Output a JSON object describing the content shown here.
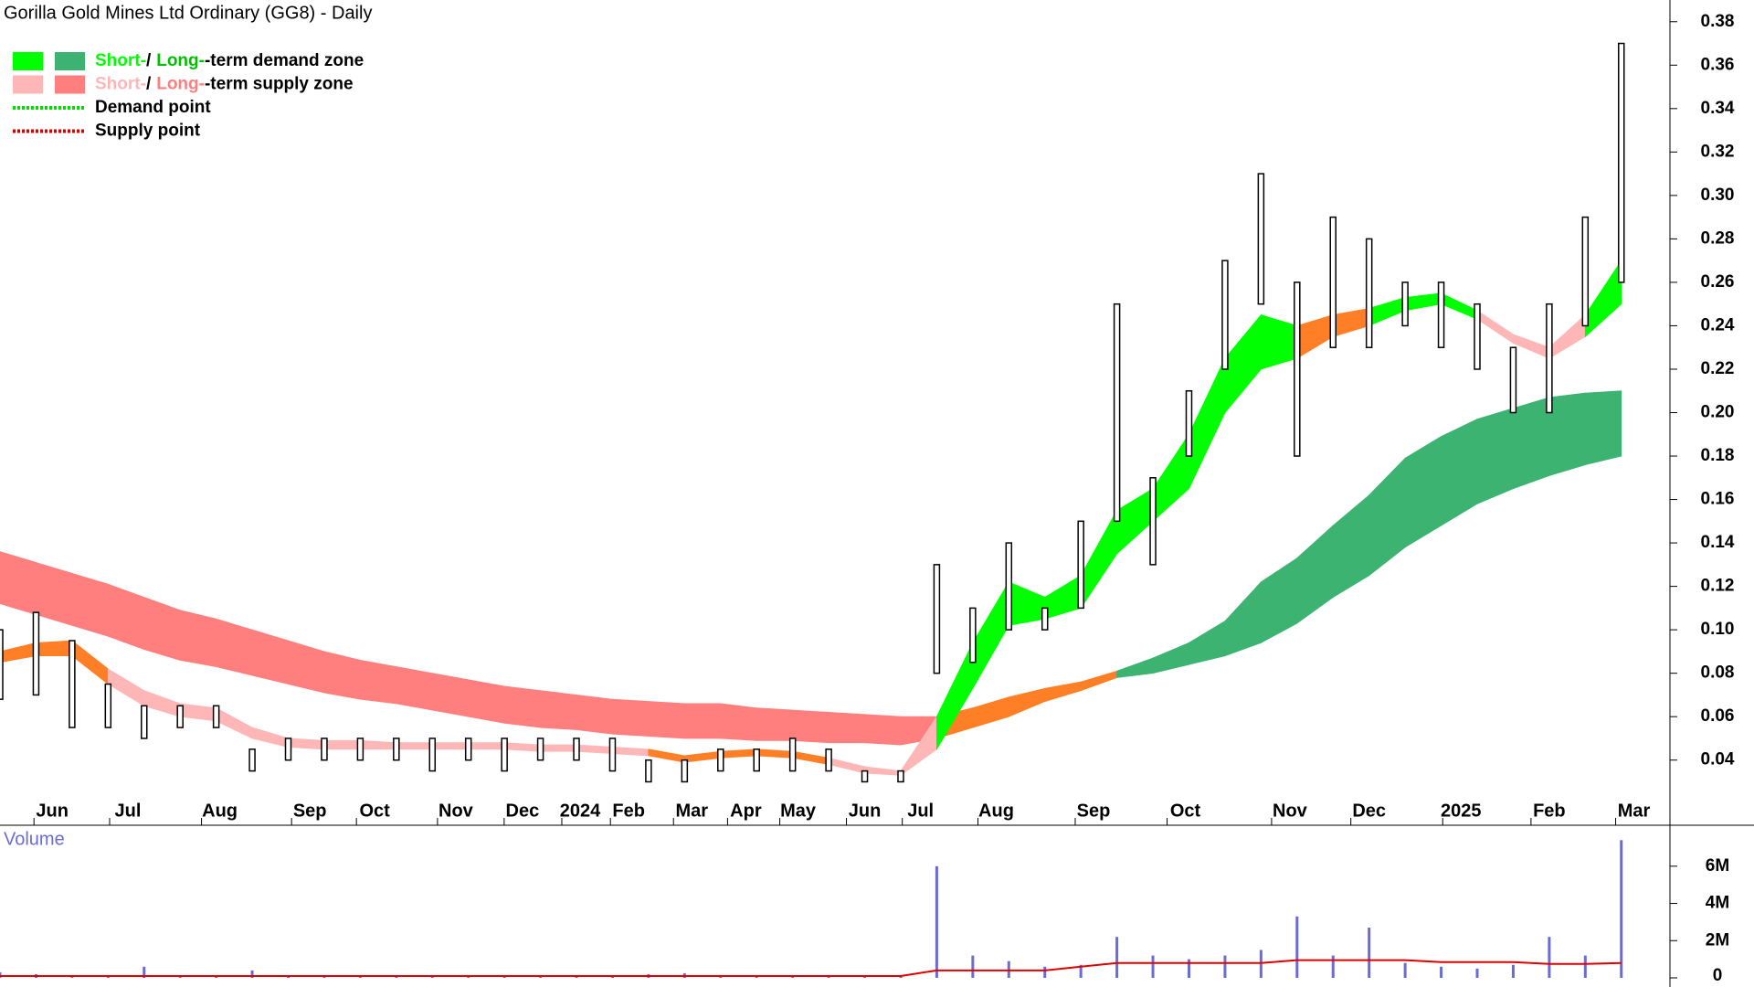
{
  "chart_data": [
    {
      "type": "range",
      "title": "Gorilla Gold Mines Ltd Ordinary (GG8) - Daily",
      "legend": [
        {
          "swatches": [
            "#00ff00",
            "#3cb371"
          ],
          "parts": [
            {
              "text": "Short-",
              "color": "#00ff00"
            },
            {
              "text": "/",
              "color": "#000000"
            },
            {
              "text": "Long-",
              "color": "#00c000"
            },
            {
              "text": "-term demand zone",
              "color": "#000000"
            }
          ]
        },
        {
          "swatches": [
            "#ffb6b6",
            "#ff7f7f"
          ],
          "parts": [
            {
              "text": "Short-",
              "color": "#ffb6b6"
            },
            {
              "text": "/",
              "color": "#000000"
            },
            {
              "text": "Long-",
              "color": "#ff7f7f"
            },
            {
              "text": "-term supply zone",
              "color": "#000000"
            }
          ]
        },
        {
          "dotted": "#00dd00",
          "parts": [
            {
              "text": "Demand point",
              "color": "#000000"
            }
          ]
        },
        {
          "dotted": "#dd0000",
          "parts": [
            {
              "text": "Supply point",
              "color": "#000000"
            }
          ]
        }
      ],
      "x": [
        0,
        2,
        4,
        6,
        8,
        10,
        12,
        14,
        16,
        18,
        20,
        22,
        24,
        26,
        28,
        30,
        32,
        34,
        36,
        38,
        40,
        42,
        44,
        46,
        48,
        50,
        52,
        54,
        56,
        58,
        60,
        62,
        64,
        66,
        68,
        70,
        72,
        74,
        76,
        78,
        80,
        82,
        84,
        86,
        88,
        90
      ],
      "low": [
        0.068,
        0.07,
        0.055,
        0.055,
        0.05,
        0.055,
        0.055,
        0.035,
        0.04,
        0.04,
        0.04,
        0.04,
        0.035,
        0.04,
        0.035,
        0.04,
        0.04,
        0.035,
        0.03,
        0.03,
        0.035,
        0.035,
        0.035,
        0.035,
        0.03,
        0.03,
        0.08,
        0.085,
        0.1,
        0.1,
        0.11,
        0.15,
        0.13,
        0.18,
        0.22,
        0.25,
        0.18,
        0.23,
        0.23,
        0.24,
        0.23,
        0.22,
        0.2,
        0.2,
        0.24,
        0.26
      ],
      "high": [
        0.1,
        0.108,
        0.095,
        0.075,
        0.065,
        0.065,
        0.065,
        0.045,
        0.05,
        0.05,
        0.05,
        0.05,
        0.05,
        0.05,
        0.05,
        0.05,
        0.05,
        0.05,
        0.04,
        0.04,
        0.045,
        0.045,
        0.05,
        0.045,
        0.035,
        0.035,
        0.13,
        0.11,
        0.14,
        0.11,
        0.15,
        0.25,
        0.17,
        0.21,
        0.27,
        0.31,
        0.26,
        0.29,
        0.28,
        0.26,
        0.26,
        0.25,
        0.23,
        0.25,
        0.29,
        0.37
      ],
      "bands": [
        {
          "upper": [
            0.136,
            0.131,
            0.126,
            0.121,
            0.115,
            0.109,
            0.105,
            0.1,
            0.095,
            0.09,
            0.086,
            0.083,
            0.08,
            0.077,
            0.074,
            0.072,
            0.07,
            0.068,
            0.067,
            0.066,
            0.066,
            0.064,
            0.063,
            0.062,
            0.061,
            0.06,
            0.06,
            0.064,
            0.069,
            0.073,
            0.076,
            0.081,
            0.087,
            0.094,
            0.104,
            0.122,
            0.133,
            0.148,
            0.162,
            0.179,
            0.189,
            0.197,
            0.202,
            0.207,
            0.209,
            0.21
          ],
          "lower": [
            0.112,
            0.107,
            0.102,
            0.097,
            0.091,
            0.086,
            0.083,
            0.079,
            0.075,
            0.071,
            0.068,
            0.066,
            0.063,
            0.06,
            0.057,
            0.055,
            0.054,
            0.052,
            0.051,
            0.05,
            0.05,
            0.049,
            0.049,
            0.048,
            0.048,
            0.047,
            0.05,
            0.055,
            0.06,
            0.067,
            0.072,
            0.078,
            0.08,
            0.084,
            0.088,
            0.094,
            0.103,
            0.115,
            0.125,
            0.138,
            0.148,
            0.158,
            0.165,
            0.171,
            0.176,
            0.18
          ],
          "colors": [
            "#ff7f7f",
            "#ff7f7f",
            "#ff7f7f",
            "#ff7f7f",
            "#ff7f7f",
            "#ff7f7f",
            "#ff7f7f",
            "#ff7f7f",
            "#ff7f7f",
            "#ff7f7f",
            "#ff7f7f",
            "#ff7f7f",
            "#ff7f7f",
            "#ff7f7f",
            "#ff7f7f",
            "#ff7f7f",
            "#ff7f7f",
            "#ff7f7f",
            "#ff7f7f",
            "#ff7f7f",
            "#ff7f7f",
            "#ff7f7f",
            "#ff7f7f",
            "#ff7f7f",
            "#ff7f7f",
            "#ff7f7f",
            "#ff7f27",
            "#ff7f27",
            "#ff7f27",
            "#ff7f27",
            "#ff7f27",
            "#3cb371",
            "#3cb371",
            "#3cb371",
            "#3cb371",
            "#3cb371",
            "#3cb371",
            "#3cb371",
            "#3cb371",
            "#3cb371",
            "#3cb371",
            "#3cb371",
            "#3cb371",
            "#3cb371",
            "#3cb371",
            "#3cb371"
          ]
        },
        {
          "upper": [
            0.09,
            0.094,
            0.095,
            0.082,
            0.072,
            0.066,
            0.064,
            0.055,
            0.05,
            0.049,
            0.049,
            0.048,
            0.048,
            0.048,
            0.048,
            0.047,
            0.047,
            0.046,
            0.045,
            0.042,
            0.044,
            0.045,
            0.044,
            0.041,
            0.037,
            0.035,
            0.06,
            0.094,
            0.122,
            0.115,
            0.125,
            0.155,
            0.165,
            0.19,
            0.225,
            0.245,
            0.24,
            0.245,
            0.248,
            0.253,
            0.255,
            0.247,
            0.236,
            0.23,
            0.245,
            0.27
          ],
          "lower": [
            0.085,
            0.088,
            0.088,
            0.075,
            0.065,
            0.06,
            0.058,
            0.05,
            0.046,
            0.045,
            0.045,
            0.045,
            0.045,
            0.045,
            0.045,
            0.044,
            0.044,
            0.043,
            0.042,
            0.039,
            0.041,
            0.042,
            0.041,
            0.038,
            0.034,
            0.033,
            0.045,
            0.073,
            0.102,
            0.105,
            0.11,
            0.135,
            0.15,
            0.165,
            0.2,
            0.22,
            0.225,
            0.235,
            0.24,
            0.247,
            0.25,
            0.243,
            0.232,
            0.225,
            0.235,
            0.25
          ],
          "colors": [
            "#ff7f27",
            "#ff7f27",
            "#ff7f27",
            "#ffb6b6",
            "#ffb6b6",
            "#ffb6b6",
            "#ffb6b6",
            "#ffb6b6",
            "#ffb6b6",
            "#ffb6b6",
            "#ffb6b6",
            "#ffb6b6",
            "#ffb6b6",
            "#ffb6b6",
            "#ffb6b6",
            "#ffb6b6",
            "#ffb6b6",
            "#ffb6b6",
            "#ff7f27",
            "#ff7f27",
            "#ff7f27",
            "#ff7f27",
            "#ff7f27",
            "#ffb6b6",
            "#ffb6b6",
            "#ffb6b6",
            "#00ff00",
            "#00ff00",
            "#00ff00",
            "#00ff00",
            "#00ff00",
            "#00ff00",
            "#00ff00",
            "#00ff00",
            "#00ff00",
            "#00ff00",
            "#ff7f27",
            "#ff7f27",
            "#00ff00",
            "#00ff00",
            "#00ff00",
            "#ffb6b6",
            "#ffb6b6",
            "#ffb6b6",
            "#00ff00",
            "#00ff00"
          ]
        }
      ],
      "xlim": [
        0,
        92.7
      ],
      "ylim": [
        0.01,
        0.39
      ],
      "yticks": [
        0.04,
        0.06,
        0.08,
        {
          "value": 0.1,
          "label": "0.10"
        },
        0.12,
        0.14,
        0.16,
        0.18,
        {
          "value": 0.2,
          "label": "0.20"
        },
        0.22,
        0.24,
        0.26,
        0.28,
        {
          "value": 0.3,
          "label": "0.30"
        },
        0.32,
        0.34,
        0.36,
        0.38
      ],
      "xticks": [
        {
          "value": 2.9,
          "label": "Jun"
        },
        {
          "value": 7.1,
          "label": "Jul"
        },
        {
          "value": 12.2,
          "label": "Aug"
        },
        {
          "value": 17.2,
          "label": "Sep"
        },
        {
          "value": 20.8,
          "label": "Oct"
        },
        {
          "value": 25.3,
          "label": "Nov"
        },
        {
          "value": 29.0,
          "label": "Dec"
        },
        {
          "value": 32.2,
          "label": "2024"
        },
        {
          "value": 34.9,
          "label": "Feb"
        },
        {
          "value": 38.4,
          "label": "Mar"
        },
        {
          "value": 41.4,
          "label": "Apr"
        },
        {
          "value": 44.3,
          "label": "May"
        },
        {
          "value": 48.0,
          "label": "Jun"
        },
        {
          "value": 51.1,
          "label": "Jul"
        },
        {
          "value": 55.3,
          "label": "Aug"
        },
        {
          "value": 60.7,
          "label": "Sep"
        },
        {
          "value": 65.8,
          "label": "Oct"
        },
        {
          "value": 71.6,
          "label": "Nov"
        },
        {
          "value": 76.0,
          "label": "Dec"
        },
        {
          "value": 81.1,
          "label": "2025"
        },
        {
          "value": 86.0,
          "label": "Feb"
        },
        {
          "value": 90.7,
          "label": "Mar"
        }
      ]
    },
    {
      "type": "bar",
      "title": "Volume",
      "color": "#6b6bd6",
      "average_color": "#e00000",
      "x": [
        0,
        2,
        4,
        6,
        8,
        10,
        12,
        14,
        16,
        18,
        20,
        22,
        24,
        26,
        28,
        30,
        32,
        34,
        36,
        38,
        40,
        42,
        44,
        46,
        48,
        50,
        52,
        54,
        56,
        58,
        60,
        62,
        64,
        66,
        68,
        70,
        72,
        74,
        76,
        78,
        80,
        82,
        84,
        86,
        88,
        90
      ],
      "values": [
        300000,
        200000,
        150000,
        100000,
        600000,
        100000,
        150000,
        400000,
        100000,
        100000,
        100000,
        100000,
        150000,
        100000,
        100000,
        100000,
        100000,
        100000,
        200000,
        250000,
        150000,
        100000,
        100000,
        150000,
        100000,
        100000,
        6000000,
        1200000,
        900000,
        600000,
        700000,
        2200000,
        1200000,
        1000000,
        1200000,
        1500000,
        3300000,
        1200000,
        2700000,
        800000,
        600000,
        500000,
        700000,
        2200000,
        1200000,
        7400000
      ],
      "average": [
        100000,
        100000,
        100000,
        100000,
        100000,
        100000,
        100000,
        100000,
        100000,
        100000,
        100000,
        100000,
        100000,
        100000,
        100000,
        100000,
        100000,
        100000,
        100000,
        100000,
        100000,
        100000,
        100000,
        100000,
        100000,
        100000,
        400000,
        400000,
        400000,
        400000,
        600000,
        800000,
        800000,
        800000,
        800000,
        800000,
        950000,
        950000,
        950000,
        950000,
        850000,
        850000,
        850000,
        750000,
        750000,
        800000
      ],
      "xlim": [
        0,
        92.7
      ],
      "ylim": [
        0,
        8200000
      ],
      "yticks": [
        0,
        {
          "value": 2000000,
          "label": "2M"
        },
        {
          "value": 4000000,
          "label": "4M"
        },
        {
          "value": 6000000,
          "label": "6M"
        }
      ]
    }
  ]
}
